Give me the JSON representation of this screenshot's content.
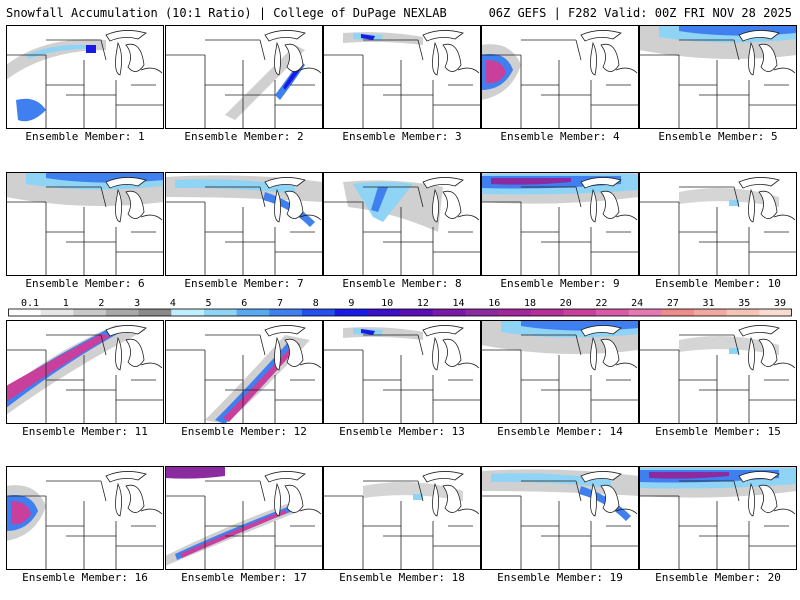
{
  "header": {
    "left": "Snowfall Accumulation (10:1 Ratio) | College of DuPage NEXLAB",
    "right": "06Z GEFS | F282 Valid: 00Z FRI NOV 28 2025"
  },
  "colorbar": {
    "ticks": [
      "0.1",
      "1",
      "2",
      "3",
      "4",
      "5",
      "6",
      "7",
      "8",
      "9",
      "10",
      "12",
      "14",
      "16",
      "18",
      "20",
      "22",
      "24",
      "27",
      "31",
      "35",
      "39"
    ],
    "colors": [
      "#ffffff",
      "#e6e6e6",
      "#c8c8c8",
      "#a8a8a8",
      "#8a8a8a",
      "#bfefff",
      "#8fd3f5",
      "#5aa8f0",
      "#3f7ff0",
      "#2450f0",
      "#1a1ae6",
      "#3a10c8",
      "#5a10b4",
      "#7a1aa8",
      "#8c2aa0",
      "#a0289c",
      "#b43098",
      "#c8409c",
      "#d85aa8",
      "#e678b4",
      "#ee8c8c",
      "#f0a8a0",
      "#f4c4b4",
      "#f8dcd0"
    ]
  },
  "members": [
    {
      "label": "Ensemble Member: 1",
      "pattern": "nw-band"
    },
    {
      "label": "Ensemble Member: 2",
      "pattern": "lake-band"
    },
    {
      "label": "Ensemble Member: 3",
      "pattern": "north-streak"
    },
    {
      "label": "Ensemble Member: 4",
      "pattern": "west-blob"
    },
    {
      "label": "Ensemble Member: 5",
      "pattern": "north-wide"
    },
    {
      "label": "Ensemble Member: 6",
      "pattern": "north-wide"
    },
    {
      "label": "Ensemble Member: 7",
      "pattern": "north-lake"
    },
    {
      "label": "Ensemble Member: 8",
      "pattern": "central-band"
    },
    {
      "label": "Ensemble Member: 9",
      "pattern": "north-heavy"
    },
    {
      "label": "Ensemble Member: 10",
      "pattern": "light"
    },
    {
      "label": "Ensemble Member: 11",
      "pattern": "sw-heavy"
    },
    {
      "label": "Ensemble Member: 12",
      "pattern": "diag-heavy"
    },
    {
      "label": "Ensemble Member: 13",
      "pattern": "north-streak"
    },
    {
      "label": "Ensemble Member: 14",
      "pattern": "north-wide"
    },
    {
      "label": "Ensemble Member: 15",
      "pattern": "light"
    },
    {
      "label": "Ensemble Member: 16",
      "pattern": "west-blob"
    },
    {
      "label": "Ensemble Member: 17",
      "pattern": "diag-band"
    },
    {
      "label": "Ensemble Member: 18",
      "pattern": "light"
    },
    {
      "label": "Ensemble Member: 19",
      "pattern": "north-lake"
    },
    {
      "label": "Ensemble Member: 20",
      "pattern": "north-heavy"
    }
  ]
}
